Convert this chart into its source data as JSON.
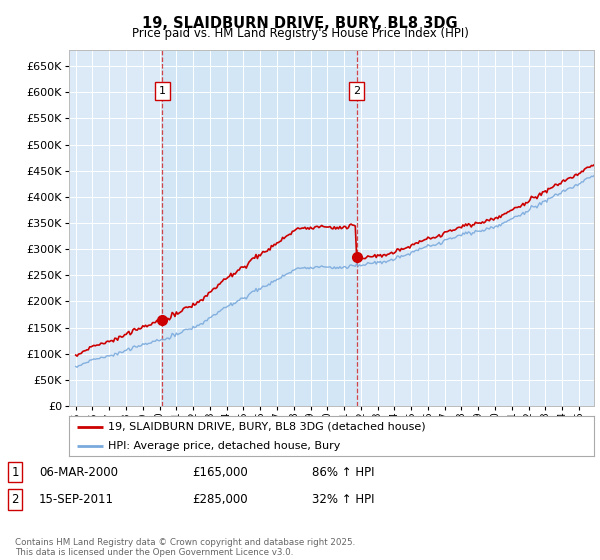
{
  "title": "19, SLAIDBURN DRIVE, BURY, BL8 3DG",
  "subtitle": "Price paid vs. HM Land Registry's House Price Index (HPI)",
  "legend_line1": "19, SLAIDBURN DRIVE, BURY, BL8 3DG (detached house)",
  "legend_line2": "HPI: Average price, detached house, Bury",
  "footnote": "Contains HM Land Registry data © Crown copyright and database right 2025.\nThis data is licensed under the Open Government Licence v3.0.",
  "sale1_label": "1",
  "sale1_date": "06-MAR-2000",
  "sale1_price": "£165,000",
  "sale1_hpi": "86% ↑ HPI",
  "sale2_label": "2",
  "sale2_date": "15-SEP-2011",
  "sale2_price": "£285,000",
  "sale2_hpi": "32% ↑ HPI",
  "ylim": [
    0,
    680000
  ],
  "yticks": [
    0,
    50000,
    100000,
    150000,
    200000,
    250000,
    300000,
    350000,
    400000,
    450000,
    500000,
    550000,
    600000,
    650000
  ],
  "plot_bg": "#dce9f7",
  "plot_bg_highlight": "#cce0f5",
  "red_line_color": "#cc0000",
  "blue_line_color": "#7aaadd",
  "grid_color": "#ffffff",
  "sale1_x": 2000.19,
  "sale2_x": 2011.71,
  "sale1_price_val": 165000,
  "sale2_price_val": 285000
}
